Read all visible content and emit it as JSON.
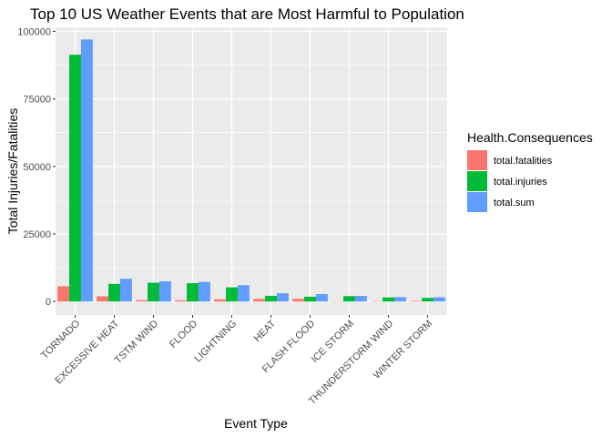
{
  "chart_data": {
    "type": "bar",
    "title": "Top 10 US Weather Events that are Most Harmful to Population",
    "xlabel": "Event Type",
    "ylabel": "Total Injuries/Fatalities",
    "categories": [
      "TORNADO",
      "EXCESSIVE HEAT",
      "TSTM WIND",
      "FLOOD",
      "LIGHTNING",
      "HEAT",
      "FLASH FLOOD",
      "ICE STORM",
      "THUNDERSTORM WIND",
      "WINTER STORM"
    ],
    "series": [
      {
        "name": "total.fatalities",
        "color": "#F8766D",
        "values": [
          5633,
          1903,
          504,
          470,
          816,
          937,
          978,
          89,
          133,
          206
        ]
      },
      {
        "name": "total.injuries",
        "color": "#00BA38",
        "values": [
          91346,
          6525,
          6957,
          6789,
          5230,
          2100,
          1777,
          1975,
          1488,
          1321
        ]
      },
      {
        "name": "total.sum",
        "color": "#619CFF",
        "values": [
          96979,
          8428,
          7461,
          7259,
          6046,
          3037,
          2755,
          2064,
          1621,
          1527
        ]
      }
    ],
    "ylim": [
      -5000,
      101500
    ],
    "yticks": [
      0,
      25000,
      50000,
      75000,
      100000
    ],
    "grid": true,
    "legend": {
      "title": "Health.Consequences",
      "position": "right"
    }
  }
}
